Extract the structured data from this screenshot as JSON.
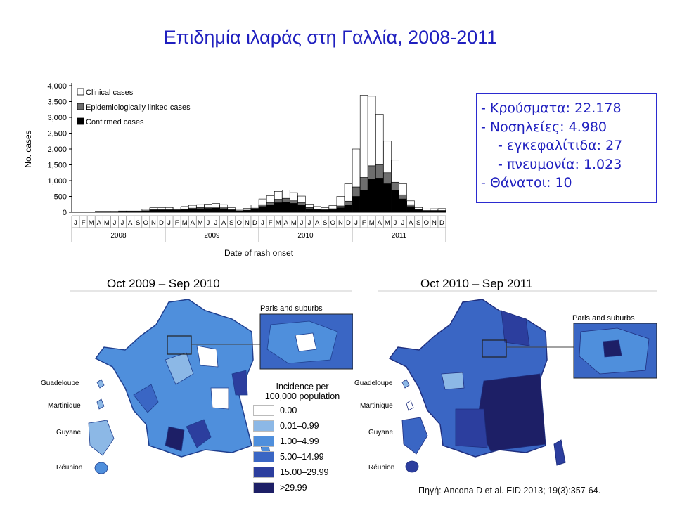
{
  "slide": {
    "title": "Επιδημία ιλαράς στη Γαλλία, 2008-2011",
    "source": "Πηγή: Ancona D et al. EID 2013; 19(3):357-64."
  },
  "stats": {
    "lines": [
      "- Κρούσματα: 22.178",
      "- Νοσηλείες: 4.980",
      "    - εγκεφαλίτιδα: 27",
      "    - πνευμονία: 1.023",
      "- Θάνατοι: 10"
    ]
  },
  "maps": {
    "left_period": "Oct 2009 – Sep 2010",
    "right_period": "Oct 2010 – Sep 2011",
    "inset_label": "Paris and suburbs",
    "territories": [
      "Guadeloupe",
      "Martinique",
      "Guyane",
      "Réunion"
    ],
    "legend": {
      "title_line1": "Incidence per",
      "title_line2": "100,000 population",
      "items": [
        {
          "label": "0.00",
          "color": "#ffffff"
        },
        {
          "label": "0.01–0.99",
          "color": "#8cb8e6"
        },
        {
          "label": "1.00–4.99",
          "color": "#4f8fdc"
        },
        {
          "label": "5.00–14.99",
          "color": "#3a66c4"
        },
        {
          "label": "15.00–29.99",
          "color": "#2c3e9e"
        },
        {
          "label": ">29.99",
          "color": "#1d1f66"
        }
      ]
    }
  },
  "chart_data": {
    "type": "bar",
    "stacked": true,
    "ylabel": "No. cases",
    "xlabel": "Date of rash onset",
    "ylim": [
      0,
      4000
    ],
    "yticks": [
      0,
      500,
      1000,
      1500,
      2000,
      2500,
      3000,
      3500,
      4000
    ],
    "ytick_labels": [
      "0",
      "500",
      "1,000",
      "1,500",
      "2,000",
      "2,500",
      "3,000",
      "3,500",
      "4,000"
    ],
    "categories": [
      "J",
      "F",
      "M",
      "A",
      "M",
      "J",
      "J",
      "A",
      "S",
      "O",
      "N",
      "D",
      "J",
      "F",
      "M",
      "A",
      "M",
      "J",
      "J",
      "A",
      "S",
      "O",
      "N",
      "D",
      "J",
      "F",
      "M",
      "A",
      "M",
      "J",
      "J",
      "A",
      "S",
      "O",
      "N",
      "D",
      "J",
      "F",
      "M",
      "A",
      "M",
      "J",
      "J",
      "A",
      "S",
      "O",
      "N",
      "D"
    ],
    "years": [
      "2008",
      "2009",
      "2010",
      "2011"
    ],
    "legend_position": "top-left",
    "series": [
      {
        "name": "Confirmed cases",
        "color": "#000000",
        "values": [
          5,
          10,
          10,
          15,
          15,
          15,
          20,
          20,
          20,
          40,
          60,
          60,
          60,
          70,
          80,
          100,
          110,
          120,
          130,
          110,
          60,
          40,
          50,
          100,
          180,
          230,
          300,
          320,
          280,
          220,
          110,
          80,
          60,
          80,
          140,
          230,
          500,
          700,
          1050,
          1080,
          900,
          700,
          420,
          180,
          70,
          40,
          40,
          40
        ]
      },
      {
        "name": "Epidemiologically linked cases",
        "color": "#6e6e6e",
        "values": [
          2,
          2,
          2,
          5,
          5,
          5,
          5,
          5,
          5,
          10,
          20,
          20,
          20,
          25,
          25,
          30,
          35,
          40,
          40,
          30,
          20,
          10,
          15,
          30,
          60,
          80,
          110,
          120,
          110,
          90,
          40,
          25,
          20,
          30,
          60,
          120,
          300,
          400,
          420,
          420,
          350,
          250,
          130,
          60,
          20,
          15,
          15,
          15
        ]
      },
      {
        "name": "Clinical cases",
        "color": "#ffffff",
        "values": [
          3,
          3,
          3,
          10,
          10,
          10,
          15,
          15,
          15,
          40,
          60,
          60,
          70,
          75,
          75,
          90,
          95,
          100,
          110,
          100,
          60,
          40,
          55,
          100,
          180,
          210,
          250,
          260,
          230,
          200,
          110,
          75,
          60,
          100,
          300,
          550,
          1200,
          2600,
          2200,
          1600,
          1000,
          700,
          350,
          120,
          60,
          50,
          55,
          60
        ]
      }
    ]
  }
}
